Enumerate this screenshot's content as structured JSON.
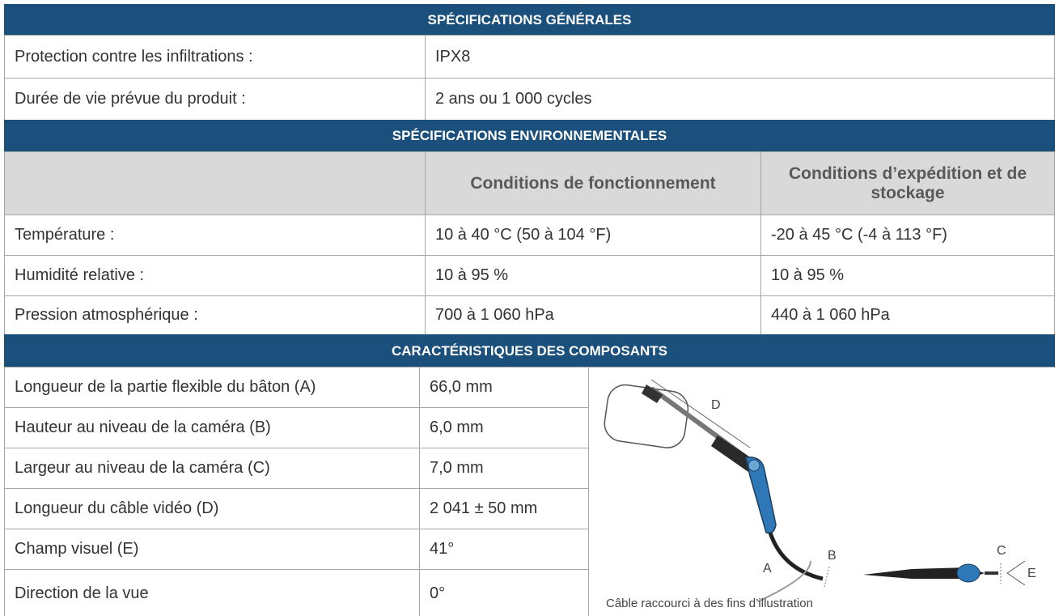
{
  "sections": [
    {
      "title": "SPÉCIFICATIONS GÉNÉRALES",
      "rows": [
        [
          "Protection contre les infiltrations :",
          "IPX8"
        ],
        [
          "Durée de vie prévue du produit :",
          "2 ans ou 1 000 cycles"
        ]
      ]
    },
    {
      "title": "SPÉCIFICATIONS ENVIRONNEMENTALES",
      "columns": [
        "Conditions de fonctionnement",
        "Conditions d’expédition et de stockage"
      ],
      "rows": [
        [
          "Température :",
          "10 à 40 °C (50 à 104 °F)",
          "-20 à 45 °C (-4 à 113 °F)"
        ],
        [
          "Humidité relative :",
          "10 à 95 %",
          "10 à 95 %"
        ],
        [
          "Pression atmosphérique :",
          "700 à 1 060 hPa",
          "440 à 1 060 hPa"
        ]
      ]
    },
    {
      "title": "CARACTÉRISTIQUES DES COMPOSANTS",
      "rows": [
        [
          "Longueur de la partie flexible du bâton (A)",
          "66,0 mm"
        ],
        [
          "Hauteur au niveau de la caméra (B)",
          "6,0 mm"
        ],
        [
          "Largeur au niveau de la caméra (C)",
          "7,0 mm"
        ],
        [
          "Longueur du câble vidéo (D)",
          "2 041 ± 50 mm"
        ],
        [
          "Champ visuel (E)",
          "41°"
        ],
        [
          "Direction de la vue",
          "0°"
        ]
      ],
      "figure": {
        "labels": [
          "A",
          "B",
          "C",
          "D",
          "E"
        ],
        "caption": "Câble raccourci à des fins d’illustration"
      }
    }
  ]
}
